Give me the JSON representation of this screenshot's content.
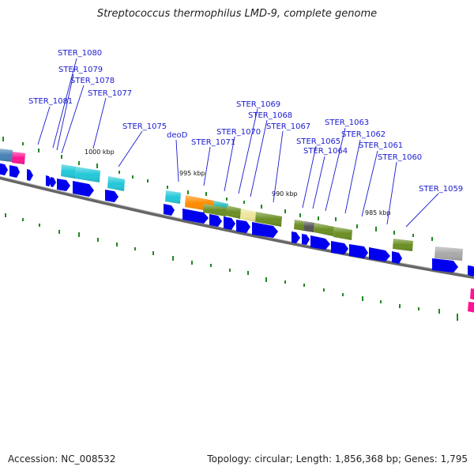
{
  "title": "Streptococcus thermophilus LMD-9, complete genome",
  "footer": {
    "accession": "Accession: NC_008532",
    "stats": "Topology: circular; Length: 1,856,368 bp; Genes: 1,795"
  },
  "colors": {
    "background": "#ffffff",
    "label": "#1a1ad0",
    "backbone": "#666666",
    "arrow": "#0000ee",
    "tick": "#228822",
    "cyan": "#22c8d8",
    "teal": "#22bbbb",
    "orange": "#ff8c00",
    "olive": "#6b8e23",
    "khaki": "#eee69a",
    "gray": "#a9a9a9",
    "darkgray": "#555555",
    "pink": "#ff1493",
    "steelblue": "#4682b4"
  },
  "kbp_marks": [
    "1000 kbp",
    "995 kbp",
    "990 kbp",
    "985 kbp"
  ],
  "gene_labels": [
    "STER_1080",
    "STER_1079",
    "STER_1078",
    "STER_1081",
    "STER_1077",
    "STER_1069",
    "STER_1068",
    "STER_1075",
    "STER_1070",
    "STER_1067",
    "deoD",
    "STER_1071",
    "STER_1063",
    "STER_1062",
    "STER_1065",
    "STER_1061",
    "STER_1064",
    "STER_1060",
    "STER_1059"
  ]
}
